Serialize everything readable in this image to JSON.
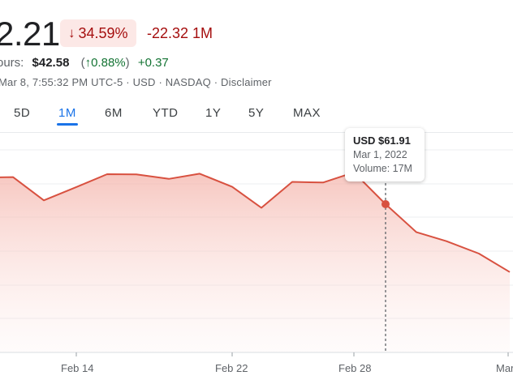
{
  "header": {
    "price": "2.21",
    "change_pct": "34.59%",
    "change_abs": "-22.32 1M",
    "after_hours_label": "ours:",
    "after_hours_price": "$42.58",
    "after_hours_pct": "0.88%",
    "after_hours_abs": "+0.37",
    "meta": "Mar 8, 7:55:32 PM UTC-5 · USD · NASDAQ · Disclaimer"
  },
  "tabs": [
    {
      "label": "5D"
    },
    {
      "label": "1M"
    },
    {
      "label": "6M"
    },
    {
      "label": "YTD"
    },
    {
      "label": "1Y"
    },
    {
      "label": "5Y"
    },
    {
      "label": "MAX"
    }
  ],
  "active_tab": "1M",
  "tooltip": {
    "price": "USD $61.91",
    "date": "Mar 1, 2022",
    "volume": "Volume: 17M"
  },
  "colors": {
    "line": "#d85140",
    "down": "#a50e0e",
    "up": "#137333",
    "active_tab": "#1a73e8"
  },
  "chart_data": {
    "type": "area",
    "x_tick_labels": [
      "Feb 14",
      "Feb 22",
      "Feb 28",
      "Mar"
    ],
    "series": [
      {
        "values": [
          {
            "x": "Feb 9",
            "y": 73.8
          },
          {
            "x": "Feb 10",
            "y": 73.9
          },
          {
            "x": "Feb 11",
            "y": 63.6
          },
          {
            "x": "Feb 14",
            "y": 69.5
          },
          {
            "x": "Feb 15",
            "y": 75.2
          },
          {
            "x": "Feb 16",
            "y": 75.1
          },
          {
            "x": "Feb 17",
            "y": 73.1
          },
          {
            "x": "Feb 18",
            "y": 75.4
          },
          {
            "x": "Feb 22",
            "y": 69.6
          },
          {
            "x": "Feb 23",
            "y": 60.3
          },
          {
            "x": "Feb 24",
            "y": 71.8
          },
          {
            "x": "Feb 25",
            "y": 71.5
          },
          {
            "x": "Feb 28",
            "y": 76.0
          },
          {
            "x": "Mar 1",
            "y": 61.91
          },
          {
            "x": "Mar 2",
            "y": 49.5
          },
          {
            "x": "Mar 3",
            "y": 45.5
          },
          {
            "x": "Mar 4",
            "y": 40.0
          },
          {
            "x": "Mar 7",
            "y": 31.8
          }
        ]
      }
    ],
    "highlight": {
      "x": "Mar 1",
      "y": 61.91
    },
    "grid": "horizontal"
  }
}
